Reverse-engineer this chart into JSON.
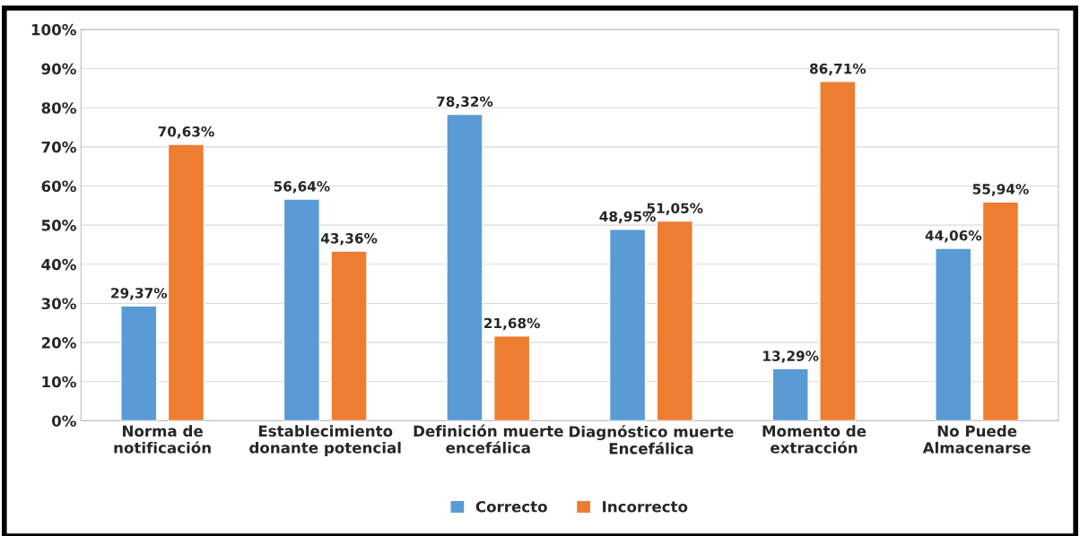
{
  "chart_data": {
    "type": "bar",
    "categories": [
      "Norma de\nnotificación",
      "Establecimiento\ndonante potencial",
      "Definición muerte\nencefálica",
      "Diagnóstico muerte\nEncefálica",
      "Momento de\nextracción",
      "No Puede\nAlmacenarse"
    ],
    "series": [
      {
        "name": "Correcto",
        "color": "#5b9bd5",
        "values": [
          29.37,
          56.64,
          78.32,
          48.95,
          13.29,
          44.06
        ],
        "value_labels": [
          "29,37%",
          "56,64%",
          "78,32%",
          "48,95%",
          "13,29%",
          "44,06%"
        ]
      },
      {
        "name": "Incorrecto",
        "color": "#ed7d31",
        "values": [
          70.63,
          43.36,
          21.68,
          51.05,
          86.71,
          55.94
        ],
        "value_labels": [
          "70,63%",
          "43,36%",
          "21,68%",
          "51,05%",
          "86,71%",
          "55,94%"
        ]
      }
    ],
    "ylim": [
      0,
      100
    ],
    "yticks": [
      {
        "value": 0,
        "label": "0%"
      },
      {
        "value": 10,
        "label": "10%"
      },
      {
        "value": 20,
        "label": "20%"
      },
      {
        "value": 30,
        "label": "30%"
      },
      {
        "value": 40,
        "label": "40%"
      },
      {
        "value": 50,
        "label": "50%"
      },
      {
        "value": 60,
        "label": "60%"
      },
      {
        "value": 70,
        "label": "70%"
      },
      {
        "value": 80,
        "label": "80%"
      },
      {
        "value": 90,
        "label": "90%"
      },
      {
        "value": 100,
        "label": "100%"
      }
    ],
    "grid": "y",
    "legend": "bottom"
  }
}
